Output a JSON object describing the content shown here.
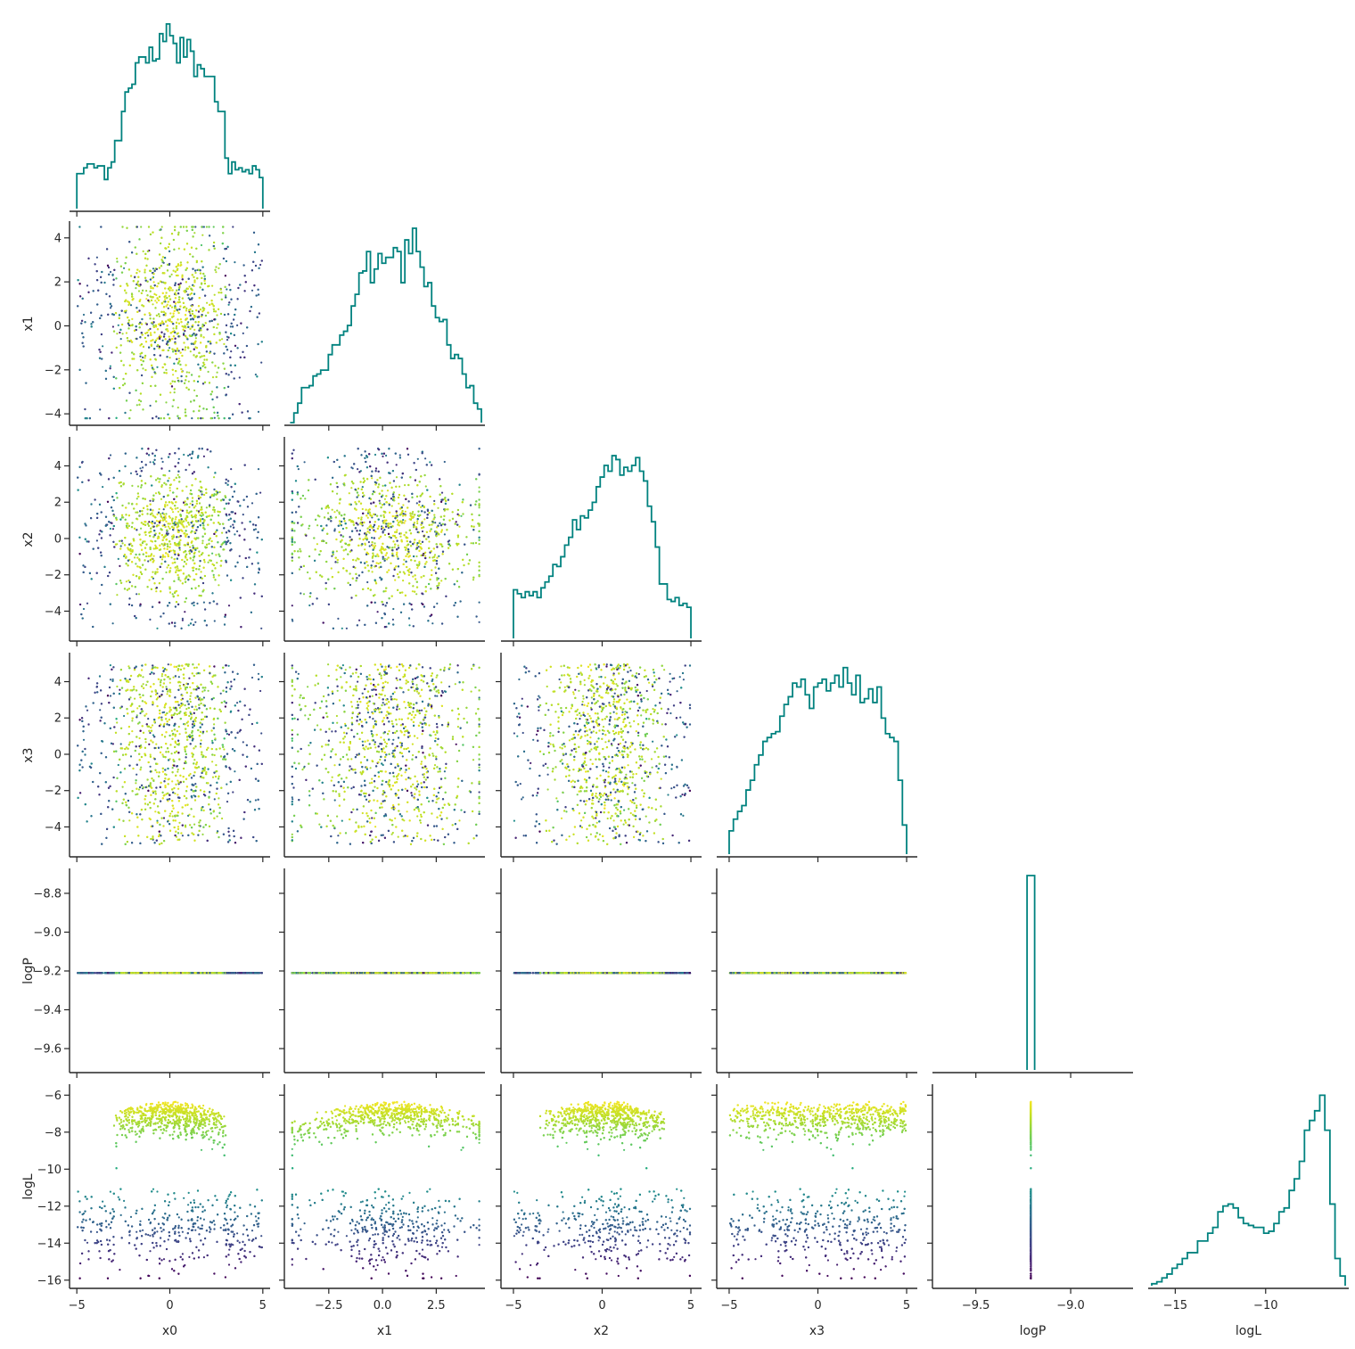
{
  "chart_data": {
    "type": "scatter",
    "title": "",
    "parameters": [
      "x0",
      "x1",
      "x2",
      "x3",
      "logP",
      "logL"
    ],
    "ranges": {
      "x0": [
        -5.2,
        5.2
      ],
      "x1": [
        -4.4,
        4.6
      ],
      "x2": [
        -5.5,
        5.4
      ],
      "x3": [
        -5.5,
        5.4
      ],
      "logP": [
        -9.71,
        -8.69
      ],
      "logL": [
        -16.3,
        -5.6
      ]
    },
    "ticks": {
      "x0": [
        -5,
        0,
        5
      ],
      "x1": [
        -2.5,
        0.0,
        2.5
      ],
      "x2": [
        -5,
        0,
        5
      ],
      "x3": [
        -5,
        0,
        5
      ],
      "logP": [
        -9.5,
        -9.0
      ],
      "logL": [
        -15,
        -10
      ]
    },
    "row_ticks": {
      "x1": [
        4,
        2,
        0,
        -2,
        -4
      ],
      "x2": [
        4,
        2,
        0,
        -2,
        -4
      ],
      "x3": [
        4,
        2,
        0,
        -2,
        -4
      ],
      "logP": [
        -8.8,
        -9.0,
        -9.2,
        -9.4,
        -9.6
      ],
      "logL": [
        -6,
        -8,
        -10,
        -12,
        -14,
        -16
      ]
    },
    "tick_text": {
      "x0": [
        "−5",
        "0",
        "5"
      ],
      "x1": [
        "−2.5",
        "0.0",
        "2.5"
      ],
      "x2": [
        "−5",
        "0",
        "5"
      ],
      "x3": [
        "−5",
        "0",
        "5"
      ],
      "logP": [
        "−9.5",
        "−9.0"
      ],
      "logL": [
        "−15",
        "−10"
      ]
    },
    "row_tick_text": {
      "x1": [
        "4",
        "2",
        "0",
        "−2",
        "−4"
      ],
      "x2": [
        "4",
        "2",
        "0",
        "−2",
        "−4"
      ],
      "x3": [
        "4",
        "2",
        "0",
        "−2",
        "−4"
      ],
      "logP": [
        "−8.8",
        "−9.0",
        "−9.2",
        "−9.4",
        "−9.6"
      ],
      "logL": [
        "−6",
        "−8",
        "−10",
        "−12",
        "−14",
        "−16"
      ]
    },
    "logP_constant": -9.21,
    "histograms": {
      "x0": {
        "bins": [
          -5.0,
          5.0
        ],
        "counts": [
          0.18,
          0.18,
          0.21,
          0.23,
          0.23,
          0.21,
          0.22,
          0.22,
          0.15,
          0.21,
          0.24,
          0.35,
          0.35,
          0.5,
          0.6,
          0.62,
          0.64,
          0.75,
          0.78,
          0.78,
          0.75,
          0.83,
          0.76,
          0.77,
          0.9,
          0.86,
          0.95,
          0.89,
          0.85,
          0.75,
          0.88,
          0.78,
          0.87,
          0.81,
          0.68,
          0.74,
          0.72,
          0.68,
          0.68,
          0.68,
          0.55,
          0.5,
          0.5,
          0.26,
          0.18,
          0.24,
          0.2,
          0.21,
          0.19,
          0.2,
          0.18,
          0.22,
          0.2,
          0.16
        ]
      },
      "x1": {
        "bins": [
          -4.3,
          4.6
        ],
        "counts": [
          0.0,
          0.05,
          0.1,
          0.18,
          0.18,
          0.19,
          0.24,
          0.25,
          0.27,
          0.27,
          0.35,
          0.4,
          0.4,
          0.45,
          0.47,
          0.5,
          0.6,
          0.66,
          0.77,
          0.78,
          0.88,
          0.72,
          0.79,
          0.87,
          0.82,
          0.85,
          0.85,
          0.9,
          0.88,
          0.72,
          0.94,
          0.87,
          1.0,
          0.88,
          0.8,
          0.7,
          0.72,
          0.6,
          0.54,
          0.52,
          0.53,
          0.4,
          0.33,
          0.35,
          0.33,
          0.25,
          0.18,
          0.19,
          0.1,
          0.07
        ]
      },
      "x2": {
        "bins": [
          -5.0,
          5.0
        ],
        "counts": [
          0.25,
          0.23,
          0.21,
          0.24,
          0.22,
          0.24,
          0.21,
          0.26,
          0.29,
          0.32,
          0.38,
          0.37,
          0.42,
          0.48,
          0.52,
          0.61,
          0.56,
          0.63,
          0.62,
          0.66,
          0.7,
          0.78,
          0.83,
          0.89,
          0.86,
          0.94,
          0.92,
          0.84,
          0.88,
          0.86,
          0.89,
          0.93,
          0.86,
          0.81,
          0.68,
          0.6,
          0.47,
          0.28,
          0.28,
          0.2,
          0.19,
          0.21,
          0.17,
          0.18,
          0.16
        ]
      },
      "x3": {
        "bins": [
          -5.0,
          5.0
        ],
        "counts": [
          0.12,
          0.18,
          0.22,
          0.25,
          0.33,
          0.38,
          0.46,
          0.51,
          0.58,
          0.6,
          0.62,
          0.63,
          0.71,
          0.77,
          0.81,
          0.88,
          0.86,
          0.9,
          0.82,
          0.75,
          0.86,
          0.88,
          0.9,
          0.84,
          0.88,
          0.92,
          0.86,
          0.96,
          0.88,
          0.82,
          0.92,
          0.78,
          0.8,
          0.85,
          0.78,
          0.86,
          0.7,
          0.62,
          0.6,
          0.58,
          0.38,
          0.15
        ]
      },
      "logP": {
        "bins": [
          -9.23,
          -9.19
        ],
        "counts": [
          1.0
        ]
      },
      "logL": {
        "bins": [
          -16.3,
          -5.6
        ],
        "counts": [
          0.01,
          0.02,
          0.04,
          0.06,
          0.09,
          0.11,
          0.14,
          0.17,
          0.17,
          0.23,
          0.23,
          0.27,
          0.3,
          0.38,
          0.41,
          0.42,
          0.4,
          0.35,
          0.32,
          0.31,
          0.3,
          0.3,
          0.27,
          0.28,
          0.32,
          0.38,
          0.4,
          0.49,
          0.55,
          0.64,
          0.8,
          0.85,
          0.9,
          0.98,
          0.8,
          0.42,
          0.14,
          0.05
        ]
      }
    },
    "colormap": "viridis",
    "colorby": "logL"
  }
}
